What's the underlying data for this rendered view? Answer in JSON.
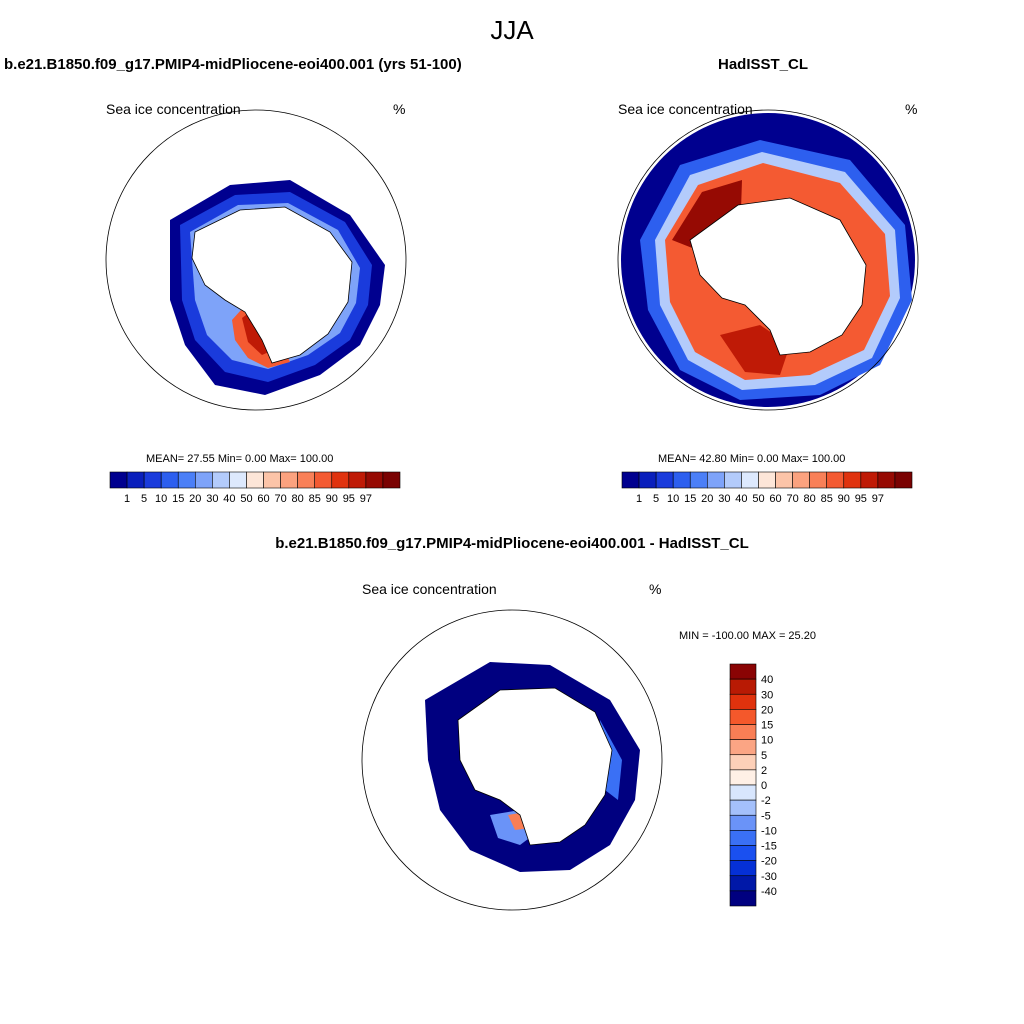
{
  "figure_title": "JJA",
  "colors": {
    "seq": [
      "#00008f",
      "#0a1fbc",
      "#1a3bdc",
      "#2d5fef",
      "#4b7ff7",
      "#7ea3f9",
      "#b3cbfb",
      "#dde9fd",
      "#fde6d8",
      "#fcc4a8",
      "#fba27f",
      "#f98058",
      "#f45a32",
      "#e0330f",
      "#bf1a06",
      "#960a03",
      "#7a0202"
    ],
    "diff": [
      "#000080",
      "#0018a8",
      "#0530d6",
      "#1a50f0",
      "#3a70f5",
      "#6a93f8",
      "#a4c0fb",
      "#d8e6fd",
      "#fff0e6",
      "#fdd0b8",
      "#fba584",
      "#f97e55",
      "#f4582b",
      "#e0320d",
      "#b81a04",
      "#8a0404"
    ]
  },
  "panels": [
    {
      "id": "model",
      "title": "b.e21.B1850.f09_g17.PMIP4-midPliocene-eoi400.001 (yrs 51-100)",
      "variable": "Sea ice concentration",
      "units": "%",
      "stats": "MEAN=  27.55  Min=   0.00  Max= 100.00",
      "colorbar_labels": [
        "1",
        "5",
        "10",
        "15",
        "20",
        "30",
        "40",
        "50",
        "60",
        "70",
        "80",
        "85",
        "90",
        "95",
        "97"
      ]
    },
    {
      "id": "obs",
      "title": "HadISST_CL",
      "variable": "Sea ice concentration",
      "units": "%",
      "stats": "MEAN=  42.80  Min=   0.00  Max= 100.00",
      "colorbar_labels": [
        "1",
        "5",
        "10",
        "15",
        "20",
        "30",
        "40",
        "50",
        "60",
        "70",
        "80",
        "85",
        "90",
        "95",
        "97"
      ]
    },
    {
      "id": "diff",
      "title": "b.e21.B1850.f09_g17.PMIP4-midPliocene-eoi400.001 - HadISST_CL",
      "variable": "Sea ice concentration",
      "units": "%",
      "stats": "MIN = -100.00 MAX =  25.20",
      "colorbar_labels": [
        "40",
        "30",
        "20",
        "15",
        "10",
        "5",
        "2",
        "0",
        "-2",
        "-5",
        "-10",
        "-15",
        "-20",
        "-30",
        "-40"
      ]
    }
  ]
}
